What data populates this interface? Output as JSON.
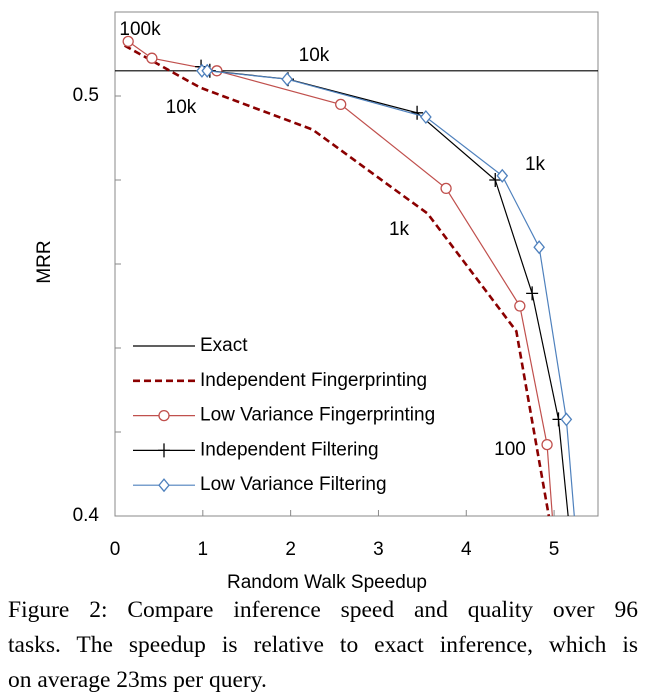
{
  "chart_data": {
    "type": "line",
    "xlabel": "Random Walk Speedup",
    "ylabel": "MRR",
    "xlim": [
      0,
      5.5
    ],
    "ylim": [
      0.4,
      0.52
    ],
    "xticks": [
      0,
      1,
      2,
      3,
      4,
      5
    ],
    "yticks": [
      {
        "value": 0.4,
        "label": "0.4"
      },
      {
        "value": 0.5,
        "label": "0.5"
      }
    ],
    "yminorticks": [
      0.42,
      0.44,
      0.46,
      0.48
    ],
    "legend": "lower left",
    "series": [
      {
        "name": "Exact",
        "color": "#000000",
        "dash": false,
        "marker": "none",
        "x": [
          0,
          5.5
        ],
        "values": [
          0.506,
          0.506
        ]
      },
      {
        "name": "Independent Fingerprinting",
        "color": "#8b0000",
        "dash": true,
        "marker": "none",
        "x": [
          0.11,
          0.97,
          2.25,
          3.56,
          4.57,
          4.94
        ],
        "values": [
          0.512,
          0.502,
          0.492,
          0.472,
          0.444,
          0.4
        ]
      },
      {
        "name": "Low Variance Fingerprinting",
        "color": "#c0504d",
        "dash": false,
        "marker": "circle",
        "x": [
          0.15,
          0.42,
          1.16,
          2.57,
          3.77,
          4.61,
          4.92,
          4.98
        ],
        "values": [
          0.513,
          0.509,
          0.506,
          0.498,
          0.478,
          0.45,
          0.417,
          0.4
        ]
      },
      {
        "name": "Independent Filtering",
        "color": "#000000",
        "dash": false,
        "marker": "plus",
        "x": [
          0.98,
          1.08,
          1.97,
          3.44,
          4.33,
          4.75,
          5.05,
          5.16
        ],
        "values": [
          0.507,
          0.506,
          0.504,
          0.496,
          0.48,
          0.453,
          0.423,
          0.4
        ]
      },
      {
        "name": "Low Variance Filtering",
        "color": "#4f81bd",
        "dash": false,
        "marker": "diamond",
        "x": [
          0.99,
          1.05,
          1.96,
          3.54,
          4.41,
          4.83,
          5.14,
          5.23
        ],
        "values": [
          0.506,
          0.506,
          0.504,
          0.495,
          0.481,
          0.464,
          0.423,
          0.4
        ]
      }
    ],
    "annotations": [
      "100k",
      "10k",
      "10k",
      "1k",
      "1k",
      "100"
    ],
    "caption": [
      "Figure 2: Compare inference speed and quality over 96",
      "tasks. The speedup is relative to exact inference, which is",
      "on average 23ms per query."
    ]
  }
}
